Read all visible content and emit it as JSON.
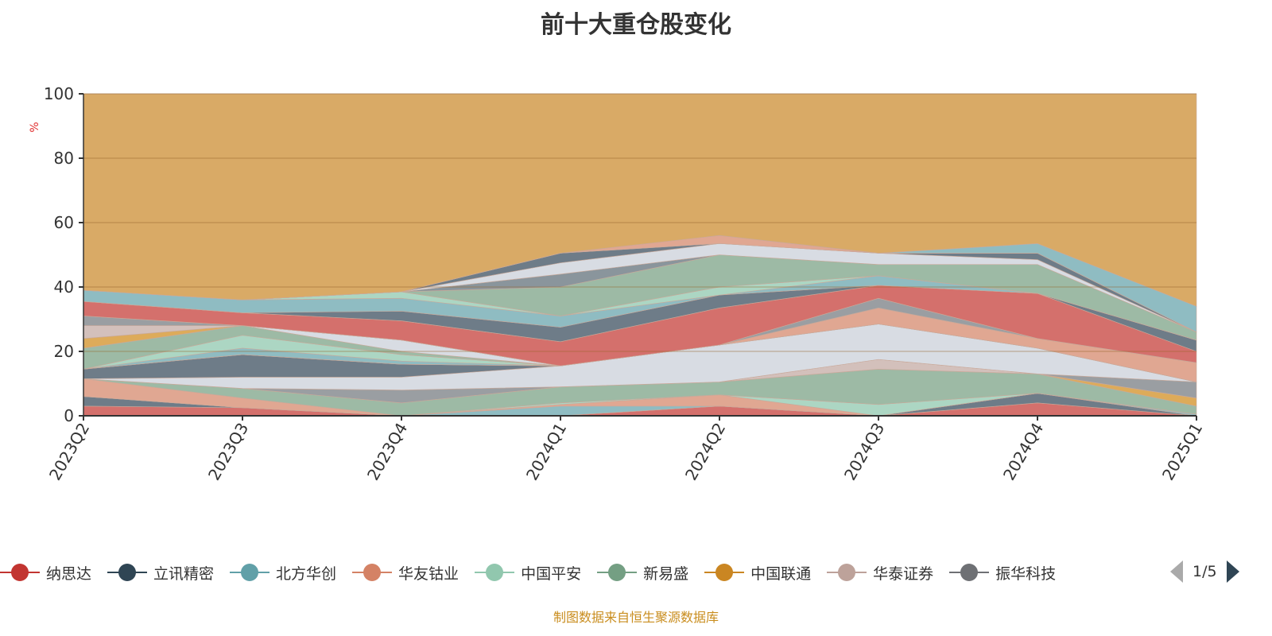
{
  "chart_data": {
    "type": "area",
    "stacked": true,
    "title": "前十大重仓股变化",
    "ylabel": "%",
    "ylim": [
      0,
      100
    ],
    "yticks": [
      0,
      20,
      40,
      60,
      80,
      100
    ],
    "categories": [
      "2023Q2",
      "2023Q3",
      "2023Q4",
      "2024Q1",
      "2024Q2",
      "2024Q3",
      "2024Q4",
      "2025Q1"
    ],
    "legend_page": "1/5",
    "series": [
      {
        "name": "纳思达",
        "color": "#c23531",
        "fill": "#d4706c",
        "values": [
          3,
          2.5,
          0,
          0,
          3,
          0,
          4,
          0
        ]
      },
      {
        "name": "立讯精密",
        "color": "#2f4554",
        "fill": "#6e7c88",
        "values": [
          3,
          0,
          0,
          0,
          0,
          0,
          3,
          0
        ]
      },
      {
        "name": "北方华创",
        "color": "#61a0a8",
        "fill": "#8fbcc2",
        "values": [
          0,
          0,
          0,
          3,
          0,
          0,
          0,
          0.5
        ]
      },
      {
        "name": "华友钴业",
        "color": "#d48265",
        "fill": "#e0a792",
        "values": [
          5.5,
          3,
          0,
          0.5,
          3.5,
          0,
          0,
          0
        ]
      },
      {
        "name": "中国平安",
        "color": "#91c7ae",
        "fill": "#acd6c3",
        "values": [
          0,
          0,
          0,
          0.5,
          0,
          3.5,
          0,
          0
        ]
      },
      {
        "name": "新易盛",
        "color": "#749f83",
        "fill": "#9dbaa5",
        "values": [
          0,
          3,
          4,
          5,
          4,
          11,
          6,
          2.5
        ]
      },
      {
        "name": "中国联通",
        "color": "#ca8622",
        "fill": "#ddab5a",
        "values": [
          0,
          0,
          0,
          0,
          0,
          0,
          0,
          2.5
        ]
      },
      {
        "name": "华泰证券",
        "color": "#bda29a",
        "fill": "#d3c0bb",
        "values": [
          0,
          0,
          0,
          0,
          0,
          3,
          0,
          0
        ]
      },
      {
        "name": "振华科技",
        "color": "#6e7074",
        "fill": "#9a9ea2",
        "values": [
          0,
          0,
          4,
          0,
          0,
          0,
          0,
          5
        ]
      },
      {
        "fill": "#d8dce3",
        "values": [
          0,
          3.5,
          4,
          6.5,
          11.5,
          11,
          8,
          0
        ]
      },
      {
        "fill": "#6e7c88",
        "values": [
          3,
          7,
          4,
          0,
          0,
          0,
          0,
          0
        ]
      },
      {
        "fill": "#e0a792",
        "values": [
          0,
          0,
          0,
          0,
          0,
          5,
          3,
          6
        ]
      },
      {
        "fill": "#8fbcc2",
        "values": [
          0,
          2,
          1,
          0,
          0,
          0,
          0,
          0
        ]
      },
      {
        "fill": "#acd6c3",
        "values": [
          0,
          4,
          2,
          0,
          0,
          0,
          0,
          0
        ]
      },
      {
        "fill": "#9dbaa5",
        "values": [
          6.5,
          3,
          1,
          0,
          0,
          0,
          0,
          0
        ]
      },
      {
        "fill": "#d8dce3",
        "values": [
          0,
          0,
          3.5,
          0,
          0,
          0,
          0,
          0
        ]
      },
      {
        "fill": "#ddab5a",
        "values": [
          3,
          0,
          0,
          0,
          0,
          0,
          0,
          0
        ]
      },
      {
        "fill": "#d3c0bb",
        "values": [
          4,
          0,
          0,
          0,
          0,
          0,
          0,
          0
        ]
      },
      {
        "fill": "#9a9ea2",
        "values": [
          3,
          0,
          0,
          0,
          0,
          3,
          0,
          0
        ]
      },
      {
        "fill": "#d4706c",
        "values": [
          4.5,
          4,
          6,
          7.5,
          11.5,
          4,
          14,
          3.5
        ]
      },
      {
        "fill": "#6e7c88",
        "values": [
          0,
          0,
          3,
          4.5,
          4,
          0,
          0,
          3.5
        ]
      },
      {
        "fill": "#8fbcc2",
        "values": [
          3.5,
          4,
          4,
          3.5,
          0,
          3,
          0,
          0
        ]
      },
      {
        "fill": "#acd6c3",
        "values": [
          0,
          0,
          2,
          0,
          2.5,
          0,
          0,
          0
        ]
      },
      {
        "fill": "#9dbaa5",
        "values": [
          0,
          0,
          0,
          9,
          10,
          3.5,
          9,
          2.5
        ]
      },
      {
        "fill": "#8a959c",
        "values": [
          0,
          0,
          0,
          4,
          0,
          0,
          0,
          0
        ]
      },
      {
        "fill": "#d8dce3",
        "values": [
          0,
          0,
          0,
          3.5,
          3.5,
          3.5,
          1.5,
          0
        ]
      },
      {
        "fill": "#6e7c88",
        "values": [
          0,
          0,
          0,
          3,
          0,
          0,
          2,
          0
        ]
      },
      {
        "fill": "#e0a792",
        "values": [
          0,
          0,
          0,
          0,
          2.5,
          0,
          0,
          0
        ]
      },
      {
        "fill": "#8fbcc2",
        "values": [
          0,
          0,
          0,
          0,
          0,
          0,
          3,
          8
        ]
      },
      {
        "fill": "#d9aa66",
        "values": [
          61,
          64,
          61.5,
          49.5,
          44,
          49.5,
          46.5,
          66
        ]
      }
    ]
  },
  "source": "制图数据来自恒生聚源数据库"
}
